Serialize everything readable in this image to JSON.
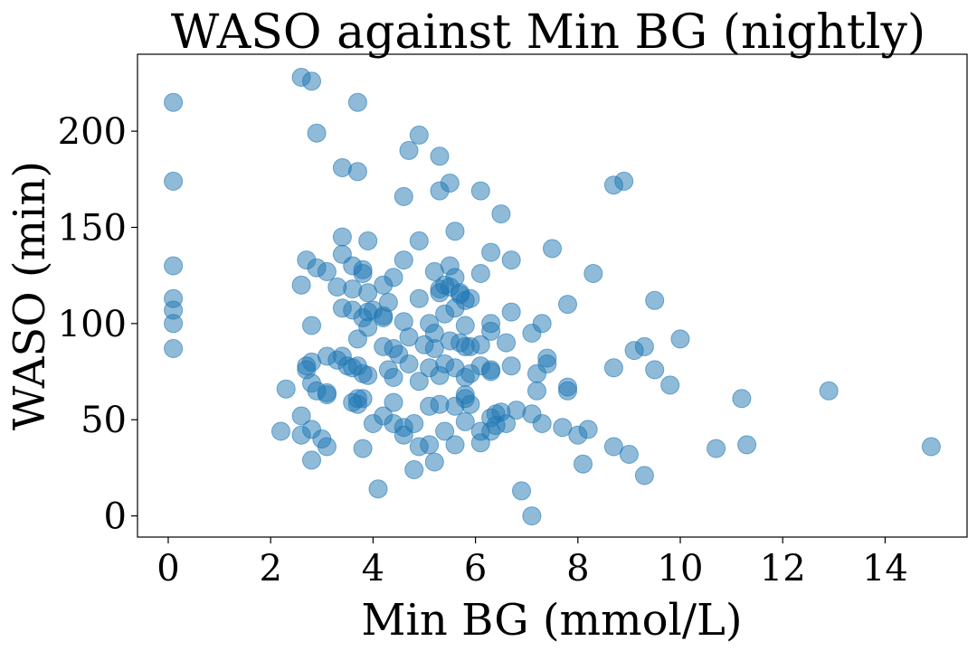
{
  "chart_data": {
    "type": "scatter",
    "title": "WASO against Min BG (nightly)",
    "xlabel": "Min BG (mmol/L)",
    "ylabel": "WASO (min)",
    "xlim": [
      -0.6,
      15.6
    ],
    "ylim": [
      -11,
      240
    ],
    "xticks": [
      0,
      2,
      4,
      6,
      8,
      10,
      12,
      14
    ],
    "yticks": [
      0,
      50,
      100,
      150,
      200
    ],
    "grid": false,
    "marker_color": "#1f77b4",
    "points": [
      [
        0.1,
        215
      ],
      [
        0.1,
        174
      ],
      [
        0.1,
        130
      ],
      [
        0.1,
        113
      ],
      [
        0.1,
        107
      ],
      [
        0.1,
        100
      ],
      [
        0.1,
        87
      ],
      [
        2.6,
        228
      ],
      [
        2.8,
        226
      ],
      [
        3.7,
        215
      ],
      [
        2.9,
        199
      ],
      [
        4.9,
        198
      ],
      [
        3.4,
        181
      ],
      [
        3.7,
        179
      ],
      [
        4.7,
        190
      ],
      [
        5.3,
        187
      ],
      [
        4.6,
        166
      ],
      [
        5.3,
        169
      ],
      [
        5.5,
        173
      ],
      [
        6.1,
        169
      ],
      [
        6.5,
        157
      ],
      [
        8.7,
        172
      ],
      [
        8.9,
        174
      ],
      [
        5.6,
        148
      ],
      [
        3.4,
        145
      ],
      [
        3.9,
        143
      ],
      [
        4.9,
        143
      ],
      [
        6.3,
        137
      ],
      [
        7.5,
        139
      ],
      [
        6.7,
        133
      ],
      [
        8.3,
        126
      ],
      [
        2.7,
        133
      ],
      [
        2.9,
        129
      ],
      [
        3.1,
        127
      ],
      [
        3.4,
        136
      ],
      [
        3.6,
        130
      ],
      [
        3.8,
        128
      ],
      [
        3.8,
        126
      ],
      [
        4.2,
        120
      ],
      [
        4.4,
        124
      ],
      [
        4.6,
        133
      ],
      [
        5.2,
        127
      ],
      [
        5.5,
        130
      ],
      [
        5.6,
        124
      ],
      [
        6.1,
        126
      ],
      [
        2.6,
        120
      ],
      [
        3.3,
        119
      ],
      [
        3.6,
        118
      ],
      [
        3.9,
        116
      ],
      [
        4.3,
        111
      ],
      [
        4.9,
        113
      ],
      [
        5.3,
        118
      ],
      [
        5.3,
        116
      ],
      [
        5.4,
        120
      ],
      [
        5.5,
        119
      ],
      [
        5.7,
        116
      ],
      [
        5.7,
        115
      ],
      [
        5.9,
        113
      ],
      [
        5.8,
        112
      ],
      [
        7.8,
        110
      ],
      [
        9.5,
        112
      ],
      [
        3.4,
        108
      ],
      [
        3.6,
        107
      ],
      [
        3.8,
        103
      ],
      [
        3.9,
        106
      ],
      [
        4.0,
        107
      ],
      [
        4.2,
        104
      ],
      [
        4.2,
        103
      ],
      [
        4.6,
        101
      ],
      [
        5.1,
        100
      ],
      [
        5.4,
        105
      ],
      [
        5.6,
        108
      ],
      [
        5.8,
        99
      ],
      [
        6.3,
        100
      ],
      [
        6.7,
        106
      ],
      [
        7.3,
        100
      ],
      [
        2.8,
        99
      ],
      [
        3.7,
        92
      ],
      [
        3.9,
        98
      ],
      [
        4.4,
        87
      ],
      [
        4.7,
        93
      ],
      [
        5.0,
        89
      ],
      [
        5.2,
        87
      ],
      [
        5.2,
        95
      ],
      [
        5.5,
        91
      ],
      [
        5.7,
        90
      ],
      [
        5.8,
        88
      ],
      [
        5.9,
        88
      ],
      [
        6.1,
        89
      ],
      [
        6.3,
        96
      ],
      [
        6.6,
        90
      ],
      [
        7.1,
        95
      ],
      [
        9.1,
        86
      ],
      [
        9.3,
        88
      ],
      [
        10.0,
        92
      ],
      [
        2.7,
        78
      ],
      [
        2.8,
        80
      ],
      [
        2.7,
        76
      ],
      [
        3.1,
        83
      ],
      [
        3.3,
        81
      ],
      [
        3.4,
        83
      ],
      [
        3.5,
        78
      ],
      [
        3.6,
        77
      ],
      [
        3.7,
        78
      ],
      [
        3.8,
        74
      ],
      [
        3.9,
        73
      ],
      [
        4.2,
        88
      ],
      [
        4.3,
        76
      ],
      [
        4.4,
        72
      ],
      [
        4.5,
        84
      ],
      [
        4.7,
        79
      ],
      [
        4.9,
        70
      ],
      [
        5.1,
        77
      ],
      [
        5.3,
        73
      ],
      [
        5.4,
        79
      ],
      [
        5.6,
        77
      ],
      [
        5.8,
        72
      ],
      [
        5.9,
        74
      ],
      [
        6.1,
        78
      ],
      [
        6.3,
        76
      ],
      [
        6.3,
        75
      ],
      [
        6.7,
        78
      ],
      [
        7.2,
        74
      ],
      [
        7.4,
        82
      ],
      [
        7.4,
        79
      ],
      [
        7.8,
        67
      ],
      [
        7.8,
        65
      ],
      [
        8.7,
        77
      ],
      [
        9.5,
        76
      ],
      [
        9.8,
        68
      ],
      [
        2.8,
        69
      ],
      [
        2.9,
        65
      ],
      [
        3.1,
        64
      ],
      [
        3.1,
        63
      ],
      [
        3.6,
        59
      ],
      [
        3.7,
        61
      ],
      [
        3.8,
        61
      ],
      [
        3.7,
        58
      ],
      [
        4.4,
        59
      ],
      [
        5.1,
        57
      ],
      [
        5.3,
        58
      ],
      [
        5.6,
        57
      ],
      [
        5.8,
        63
      ],
      [
        5.8,
        61
      ],
      [
        5.9,
        58
      ],
      [
        6.3,
        51
      ],
      [
        6.4,
        53
      ],
      [
        6.5,
        54
      ],
      [
        6.8,
        55
      ],
      [
        7.1,
        53
      ],
      [
        7.2,
        65
      ],
      [
        2.3,
        66
      ],
      [
        2.6,
        52
      ],
      [
        2.2,
        44
      ],
      [
        2.6,
        42
      ],
      [
        2.8,
        45
      ],
      [
        3.0,
        40
      ],
      [
        3.1,
        36
      ],
      [
        3.8,
        35
      ],
      [
        4.0,
        48
      ],
      [
        4.2,
        52
      ],
      [
        4.4,
        48
      ],
      [
        4.6,
        46
      ],
      [
        4.6,
        42
      ],
      [
        4.8,
        48
      ],
      [
        4.9,
        36
      ],
      [
        5.1,
        37
      ],
      [
        5.4,
        44
      ],
      [
        5.6,
        37
      ],
      [
        5.8,
        49
      ],
      [
        6.1,
        44
      ],
      [
        6.1,
        38
      ],
      [
        6.3,
        44
      ],
      [
        6.4,
        47
      ],
      [
        6.6,
        48
      ],
      [
        7.3,
        48
      ],
      [
        7.7,
        46
      ],
      [
        8.0,
        42
      ],
      [
        8.2,
        45
      ],
      [
        8.7,
        36
      ],
      [
        9.0,
        32
      ],
      [
        9.3,
        21
      ],
      [
        10.7,
        35
      ],
      [
        11.2,
        61
      ],
      [
        11.3,
        37
      ],
      [
        12.9,
        65
      ],
      [
        14.9,
        36
      ],
      [
        2.8,
        29
      ],
      [
        4.8,
        24
      ],
      [
        5.2,
        28
      ],
      [
        8.1,
        27
      ],
      [
        4.1,
        14
      ],
      [
        6.9,
        13
      ],
      [
        7.1,
        0
      ]
    ]
  }
}
